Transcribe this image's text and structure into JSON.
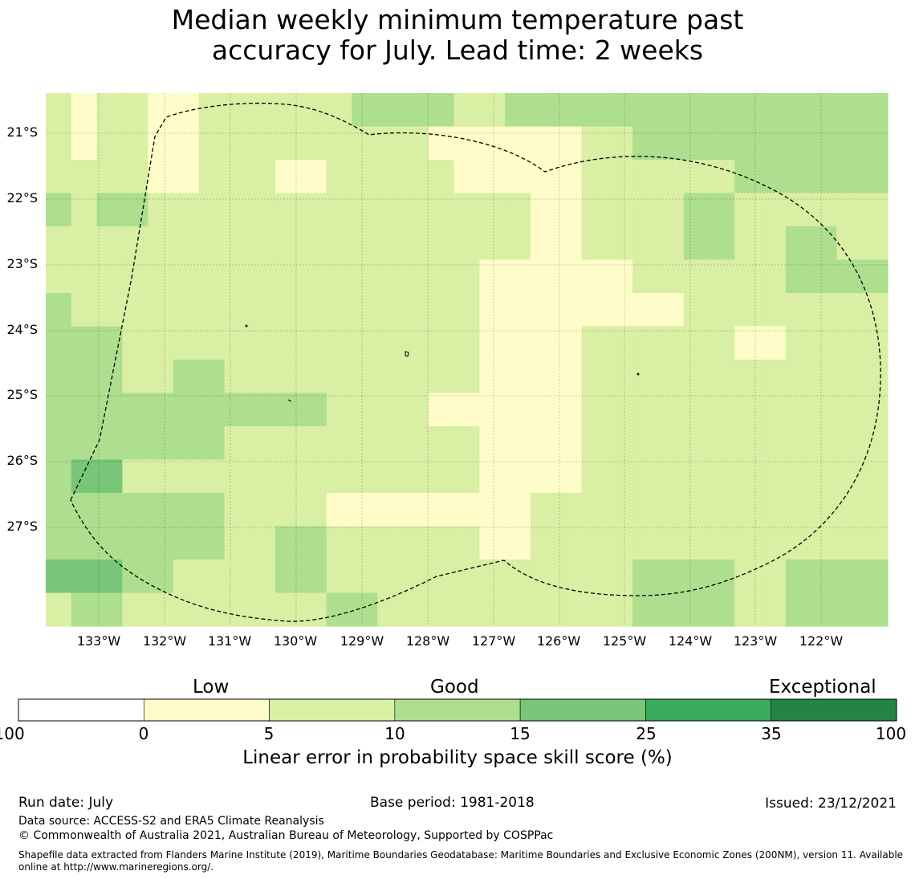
{
  "title": {
    "line1": "Median weekly minimum temperature past",
    "line2": "accuracy for July. Lead time: 2 weeks"
  },
  "map": {
    "lat_labels": [
      "21°S",
      "22°S",
      "23°S",
      "24°S",
      "25°S",
      "26°S",
      "27°S"
    ],
    "lon_labels": [
      "133°W",
      "132°W",
      "131°W",
      "130°W",
      "129°W",
      "128°W",
      "127°W",
      "126°W",
      "125°W",
      "124°W",
      "123°W",
      "122°W"
    ],
    "class_colors": [
      "#ffffff",
      "#fefdca",
      "#d9efa3",
      "#addf8e",
      "#78c678",
      "#3aab5c",
      "#238443"
    ],
    "grid": [
      [
        2,
        1,
        2,
        2,
        1,
        1,
        2,
        2,
        2,
        2,
        2,
        2,
        3,
        3,
        3,
        3,
        2,
        2,
        3,
        3,
        3,
        3,
        3,
        3,
        3,
        3,
        3,
        3,
        3,
        3,
        3,
        3,
        3
      ],
      [
        2,
        1,
        2,
        2,
        1,
        1,
        2,
        2,
        2,
        2,
        2,
        2,
        2,
        2,
        2,
        1,
        1,
        1,
        1,
        1,
        1,
        2,
        2,
        3,
        3,
        3,
        3,
        3,
        3,
        3,
        3,
        3,
        3
      ],
      [
        2,
        2,
        2,
        2,
        1,
        1,
        2,
        2,
        2,
        1,
        1,
        2,
        2,
        2,
        2,
        2,
        1,
        1,
        1,
        1,
        1,
        2,
        2,
        2,
        2,
        2,
        2,
        3,
        3,
        3,
        3,
        3,
        3
      ],
      [
        3,
        2,
        3,
        3,
        2,
        2,
        2,
        2,
        2,
        2,
        2,
        2,
        2,
        2,
        2,
        2,
        2,
        2,
        2,
        1,
        1,
        2,
        2,
        2,
        2,
        3,
        3,
        2,
        2,
        2,
        2,
        2,
        2
      ],
      [
        2,
        2,
        2,
        2,
        2,
        2,
        2,
        2,
        2,
        2,
        2,
        2,
        2,
        2,
        2,
        2,
        2,
        2,
        2,
        1,
        1,
        2,
        2,
        2,
        2,
        3,
        3,
        2,
        2,
        3,
        3,
        2,
        2
      ],
      [
        2,
        2,
        2,
        2,
        2,
        2,
        2,
        2,
        2,
        2,
        2,
        2,
        2,
        2,
        2,
        2,
        2,
        1,
        1,
        1,
        1,
        1,
        1,
        2,
        2,
        2,
        2,
        2,
        2,
        3,
        3,
        3,
        3
      ],
      [
        3,
        2,
        2,
        2,
        2,
        2,
        2,
        2,
        2,
        2,
        2,
        2,
        2,
        2,
        2,
        2,
        2,
        1,
        1,
        1,
        1,
        1,
        1,
        1,
        1,
        2,
        2,
        2,
        2,
        2,
        2,
        2,
        2
      ],
      [
        3,
        3,
        3,
        2,
        2,
        2,
        2,
        2,
        2,
        2,
        2,
        2,
        2,
        2,
        2,
        2,
        2,
        1,
        1,
        1,
        1,
        2,
        2,
        2,
        2,
        2,
        2,
        1,
        1,
        2,
        2,
        2,
        2
      ],
      [
        3,
        3,
        3,
        2,
        2,
        3,
        3,
        2,
        2,
        2,
        2,
        2,
        2,
        2,
        2,
        2,
        2,
        1,
        1,
        1,
        1,
        2,
        2,
        2,
        2,
        2,
        2,
        2,
        2,
        2,
        2,
        2,
        2
      ],
      [
        3,
        3,
        3,
        3,
        3,
        3,
        3,
        3,
        3,
        3,
        3,
        2,
        2,
        2,
        2,
        1,
        1,
        1,
        1,
        1,
        1,
        2,
        2,
        2,
        2,
        2,
        2,
        2,
        2,
        2,
        2,
        2,
        2
      ],
      [
        3,
        3,
        3,
        3,
        3,
        3,
        3,
        2,
        2,
        2,
        2,
        2,
        2,
        2,
        2,
        2,
        2,
        1,
        1,
        1,
        1,
        2,
        2,
        2,
        2,
        2,
        2,
        2,
        2,
        2,
        2,
        2,
        2
      ],
      [
        3,
        4,
        4,
        2,
        2,
        2,
        2,
        2,
        2,
        2,
        2,
        2,
        2,
        2,
        2,
        2,
        2,
        1,
        1,
        1,
        1,
        2,
        2,
        2,
        2,
        2,
        2,
        2,
        2,
        2,
        2,
        2,
        2
      ],
      [
        3,
        3,
        3,
        3,
        3,
        3,
        3,
        2,
        2,
        2,
        2,
        1,
        1,
        1,
        1,
        1,
        1,
        1,
        1,
        2,
        2,
        2,
        2,
        2,
        2,
        2,
        2,
        2,
        2,
        2,
        2,
        2,
        2
      ],
      [
        3,
        3,
        3,
        3,
        3,
        3,
        3,
        2,
        2,
        3,
        3,
        2,
        2,
        2,
        2,
        2,
        2,
        1,
        1,
        2,
        2,
        2,
        2,
        2,
        2,
        2,
        2,
        2,
        2,
        2,
        2,
        2,
        2
      ],
      [
        4,
        4,
        4,
        3,
        3,
        2,
        2,
        2,
        2,
        3,
        3,
        2,
        2,
        2,
        2,
        2,
        2,
        2,
        2,
        2,
        2,
        2,
        2,
        3,
        3,
        3,
        3,
        2,
        2,
        3,
        3,
        3,
        3
      ],
      [
        2,
        3,
        3,
        2,
        2,
        2,
        2,
        2,
        2,
        2,
        2,
        3,
        3,
        2,
        2,
        2,
        2,
        2,
        2,
        2,
        2,
        2,
        2,
        3,
        3,
        3,
        3,
        2,
        2,
        3,
        3,
        3,
        3
      ]
    ]
  },
  "colorbar": {
    "category_labels": [
      "Low",
      "Good",
      "Exceptional"
    ],
    "ticks": [
      "-100",
      "0",
      "5",
      "10",
      "15",
      "25",
      "35",
      "100"
    ],
    "colors": [
      "#ffffff",
      "#fefdca",
      "#d9efa3",
      "#addf8e",
      "#78c678",
      "#3aab5c",
      "#238443"
    ],
    "title": "Linear error in probability space skill score (%)"
  },
  "footer": {
    "run_date": "Run date: July",
    "base_period": "Base period: 1981-2018",
    "issued": "Issued: 23/12/2021",
    "data_source": "Data source: ACCESS-S2 and ERA5 Climate Reanalysis",
    "copyright": "© Commonwealth of Australia 2021, Australian Bureau of Meteorology, Supported by COSPPac",
    "shapefile": "Shapefile data extracted from Flanders Marine Institute (2019), Maritime Boundaries Geodatabase: Maritime Boundaries and Exclusive Economic Zones (200NM), version 11. Available online at http://www.marineregions.org/."
  }
}
